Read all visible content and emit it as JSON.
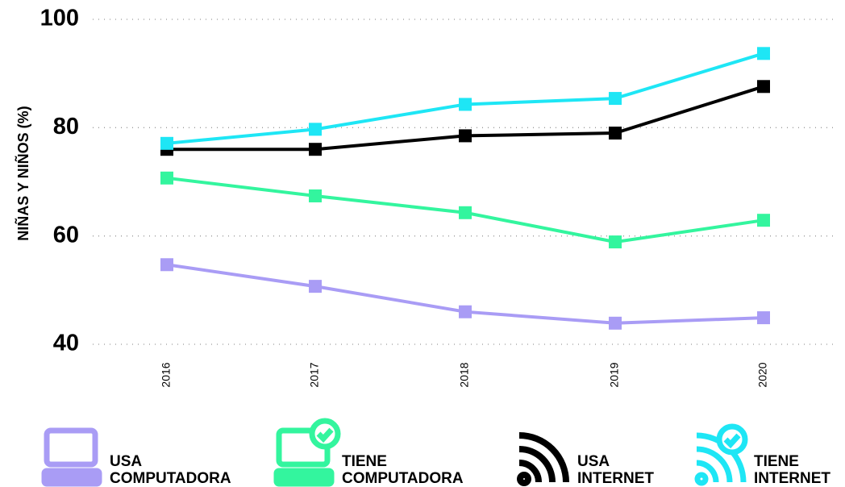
{
  "chart_data": {
    "type": "line",
    "y_label": "NIÑAS Y NIÑOS (%)",
    "categories": [
      "2016",
      "2017",
      "2018",
      "2019",
      "2020"
    ],
    "series": [
      {
        "name": "USA COMPUTADORA",
        "color": "#a99cf5",
        "values": [
          54.7,
          50.7,
          46,
          43.9,
          44.9
        ]
      },
      {
        "name": "TIENE COMPUTADORA",
        "color": "#33f59e",
        "values": [
          70.7,
          67.4,
          64.3,
          58.9,
          62.9
        ]
      },
      {
        "name": "USA INTERNET",
        "color": "#000000",
        "values": [
          76,
          76,
          78.5,
          79,
          87.6
        ]
      },
      {
        "name": "TIENE INTERNET",
        "color": "#1ee6f5",
        "values": [
          77.1,
          79.7,
          84.3,
          85.4,
          93.7
        ]
      }
    ],
    "ylim": [
      40,
      100
    ],
    "yticks": [
      40,
      60,
      80,
      100
    ],
    "grid": true,
    "legend": "bottom"
  }
}
